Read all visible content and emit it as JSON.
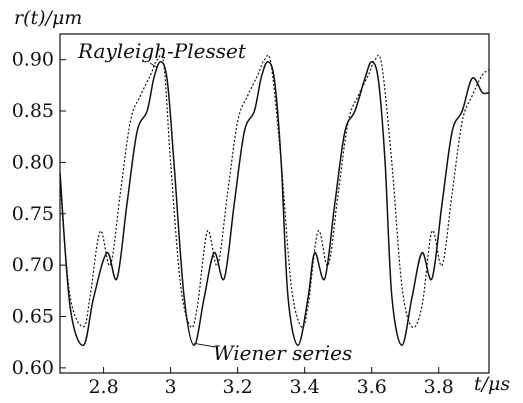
{
  "chart_data": {
    "type": "line",
    "ylabel": "r(t)/μm",
    "xlabel": "t/μs",
    "xlim": [
      2.67,
      3.95
    ],
    "ylim": [
      0.595,
      0.925
    ],
    "x_ticks": [
      2.8,
      3.0,
      3.2,
      3.4,
      3.6,
      3.8
    ],
    "x_tick_labels": [
      "2.8",
      "3",
      "3.2",
      "3.4",
      "3.6",
      "3.8"
    ],
    "y_ticks": [
      0.6,
      0.65,
      0.7,
      0.75,
      0.8,
      0.85,
      0.9
    ],
    "y_tick_labels": [
      "0.60",
      "0.65",
      "0.70",
      "0.75",
      "0.80",
      "0.85",
      "0.90"
    ],
    "series": [
      {
        "name": "Rayleigh-Plesset",
        "style": "dotted",
        "color": "#111111",
        "x": [
          2.67,
          2.7,
          2.74,
          2.76,
          2.79,
          2.82,
          2.85,
          2.88,
          2.91,
          2.94,
          2.96,
          2.98,
          3.0,
          3.03,
          3.06,
          3.08,
          3.11,
          3.14,
          3.17,
          3.2,
          3.23,
          3.26,
          3.28,
          3.3,
          3.33,
          3.36,
          3.39,
          3.41,
          3.44,
          3.47,
          3.5,
          3.53,
          3.56,
          3.59,
          3.61,
          3.63,
          3.66,
          3.69,
          3.72,
          3.75,
          3.78,
          3.81,
          3.84,
          3.87,
          3.9,
          3.93,
          3.95
        ],
        "y": [
          0.78,
          0.67,
          0.64,
          0.67,
          0.733,
          0.7,
          0.77,
          0.84,
          0.865,
          0.885,
          0.9,
          0.895,
          0.8,
          0.68,
          0.64,
          0.66,
          0.733,
          0.7,
          0.77,
          0.84,
          0.865,
          0.885,
          0.9,
          0.895,
          0.8,
          0.68,
          0.64,
          0.66,
          0.733,
          0.7,
          0.77,
          0.84,
          0.865,
          0.885,
          0.9,
          0.895,
          0.8,
          0.68,
          0.64,
          0.66,
          0.733,
          0.7,
          0.77,
          0.84,
          0.865,
          0.885,
          0.89
        ]
      },
      {
        "name": "Wiener series",
        "style": "solid",
        "color": "#111111",
        "x": [
          2.67,
          2.7,
          2.74,
          2.77,
          2.81,
          2.84,
          2.87,
          2.9,
          2.93,
          2.95,
          2.97,
          2.99,
          3.01,
          3.04,
          3.07,
          3.1,
          3.13,
          3.16,
          3.19,
          3.22,
          3.25,
          3.27,
          3.29,
          3.31,
          3.33,
          3.35,
          3.38,
          3.41,
          3.43,
          3.46,
          3.49,
          3.52,
          3.55,
          3.58,
          3.6,
          3.62,
          3.64,
          3.66,
          3.69,
          3.72,
          3.75,
          3.78,
          3.81,
          3.84,
          3.87,
          3.9,
          3.93,
          3.95
        ],
        "y": [
          0.79,
          0.66,
          0.622,
          0.668,
          0.712,
          0.687,
          0.76,
          0.83,
          0.85,
          0.882,
          0.898,
          0.88,
          0.8,
          0.67,
          0.622,
          0.668,
          0.712,
          0.687,
          0.76,
          0.83,
          0.85,
          0.882,
          0.898,
          0.88,
          0.8,
          0.67,
          0.622,
          0.668,
          0.712,
          0.687,
          0.76,
          0.83,
          0.85,
          0.882,
          0.898,
          0.88,
          0.8,
          0.67,
          0.622,
          0.668,
          0.712,
          0.687,
          0.76,
          0.83,
          0.85,
          0.882,
          0.868,
          0.868
        ]
      }
    ],
    "annotations": [
      {
        "text": "Rayleigh-Plesset",
        "target_x": 2.96,
        "target_y": 0.9
      },
      {
        "text": "Wiener series",
        "target_x": 3.07,
        "target_y": 0.622
      }
    ],
    "grid": false,
    "legend": "none"
  }
}
